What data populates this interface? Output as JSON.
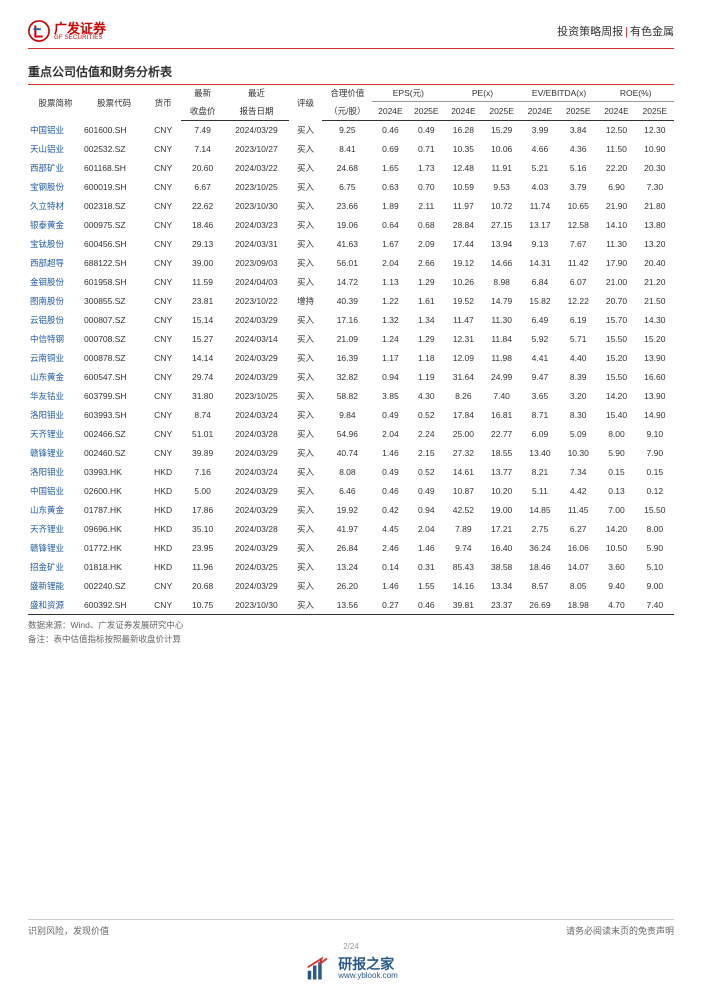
{
  "header": {
    "logo_cn": "广发证券",
    "logo_en": "GF SECURITIES",
    "right_left": "投资策略周报",
    "right_right": "有色金属"
  },
  "title": "重点公司估值和财务分析表",
  "table": {
    "group_headers": {
      "name": "股票简称",
      "code": "股票代码",
      "curr": "货币",
      "price_l1": "最新",
      "price_l2": "收盘价",
      "date_l1": "最近",
      "date_l2": "报告日期",
      "rating": "评级",
      "fair_l1": "合理价值",
      "fair_l2": "（元/股）",
      "eps": "EPS(元)",
      "pe": "PE(x)",
      "ev": "EV/EBITDA(x)",
      "roe": "ROE(%)"
    },
    "sub_headers": [
      "2024E",
      "2025E",
      "2024E",
      "2025E",
      "2024E",
      "2025E",
      "2024E",
      "2025E"
    ],
    "rows": [
      {
        "n": "中国铝业",
        "c": "601600.SH",
        "cur": "CNY",
        "p": "7.49",
        "d": "2024/03/29",
        "r": "买入",
        "fv": "9.25",
        "v": [
          "0.46",
          "0.49",
          "16.28",
          "15.29",
          "3.99",
          "3.84",
          "12.50",
          "12.30"
        ]
      },
      {
        "n": "天山铝业",
        "c": "002532.SZ",
        "cur": "CNY",
        "p": "7.14",
        "d": "2023/10/27",
        "r": "买入",
        "fv": "8.41",
        "v": [
          "0.69",
          "0.71",
          "10.35",
          "10.06",
          "4.66",
          "4.36",
          "11.50",
          "10.90"
        ]
      },
      {
        "n": "西部矿业",
        "c": "601168.SH",
        "cur": "CNY",
        "p": "20.60",
        "d": "2024/03/22",
        "r": "买入",
        "fv": "24.68",
        "v": [
          "1.65",
          "1.73",
          "12.48",
          "11.91",
          "5.21",
          "5.16",
          "22.20",
          "20.30"
        ]
      },
      {
        "n": "宝钢股份",
        "c": "600019.SH",
        "cur": "CNY",
        "p": "6.67",
        "d": "2023/10/25",
        "r": "买入",
        "fv": "6.75",
        "v": [
          "0.63",
          "0.70",
          "10.59",
          "9.53",
          "4.03",
          "3.79",
          "6.90",
          "7.30"
        ]
      },
      {
        "n": "久立特材",
        "c": "002318.SZ",
        "cur": "CNY",
        "p": "22.62",
        "d": "2023/10/30",
        "r": "买入",
        "fv": "23.66",
        "v": [
          "1.89",
          "2.11",
          "11.97",
          "10.72",
          "11.74",
          "10.65",
          "21.90",
          "21.80"
        ]
      },
      {
        "n": "银泰黄金",
        "c": "000975.SZ",
        "cur": "CNY",
        "p": "18.46",
        "d": "2024/03/23",
        "r": "买入",
        "fv": "19.06",
        "v": [
          "0.64",
          "0.68",
          "28.84",
          "27.15",
          "13.17",
          "12.58",
          "14.10",
          "13.80"
        ]
      },
      {
        "n": "宝钛股份",
        "c": "600456.SH",
        "cur": "CNY",
        "p": "29.13",
        "d": "2024/03/31",
        "r": "买入",
        "fv": "41.63",
        "v": [
          "1.67",
          "2.09",
          "17.44",
          "13.94",
          "9.13",
          "7.67",
          "11.30",
          "13.20"
        ]
      },
      {
        "n": "西部超导",
        "c": "688122.SH",
        "cur": "CNY",
        "p": "39.00",
        "d": "2023/09/03",
        "r": "买入",
        "fv": "56.01",
        "v": [
          "2.04",
          "2.66",
          "19.12",
          "14.66",
          "14.31",
          "11.42",
          "17.90",
          "20.40"
        ]
      },
      {
        "n": "金钼股份",
        "c": "601958.SH",
        "cur": "CNY",
        "p": "11.59",
        "d": "2024/04/03",
        "r": "买入",
        "fv": "14.72",
        "v": [
          "1.13",
          "1.29",
          "10.26",
          "8.98",
          "6.84",
          "6.07",
          "21.00",
          "21.20"
        ]
      },
      {
        "n": "图南股份",
        "c": "300855.SZ",
        "cur": "CNY",
        "p": "23.81",
        "d": "2023/10/22",
        "r": "增持",
        "fv": "40.39",
        "v": [
          "1.22",
          "1.61",
          "19.52",
          "14.79",
          "15.82",
          "12.22",
          "20.70",
          "21.50"
        ]
      },
      {
        "n": "云铝股份",
        "c": "000807.SZ",
        "cur": "CNY",
        "p": "15.14",
        "d": "2024/03/29",
        "r": "买入",
        "fv": "17.16",
        "v": [
          "1.32",
          "1.34",
          "11.47",
          "11.30",
          "6.49",
          "6.19",
          "15.70",
          "14.30"
        ]
      },
      {
        "n": "中信特钢",
        "c": "000708.SZ",
        "cur": "CNY",
        "p": "15.27",
        "d": "2024/03/14",
        "r": "买入",
        "fv": "21.09",
        "v": [
          "1.24",
          "1.29",
          "12.31",
          "11.84",
          "5.92",
          "5.71",
          "15.50",
          "15.20"
        ]
      },
      {
        "n": "云南铜业",
        "c": "000878.SZ",
        "cur": "CNY",
        "p": "14.14",
        "d": "2024/03/29",
        "r": "买入",
        "fv": "16.39",
        "v": [
          "1.17",
          "1.18",
          "12.09",
          "11.98",
          "4.41",
          "4.40",
          "15.20",
          "13.90"
        ]
      },
      {
        "n": "山东黄金",
        "c": "600547.SH",
        "cur": "CNY",
        "p": "29.74",
        "d": "2024/03/29",
        "r": "买入",
        "fv": "32.82",
        "v": [
          "0.94",
          "1.19",
          "31.64",
          "24.99",
          "9.47",
          "8.39",
          "15.50",
          "16.60"
        ]
      },
      {
        "n": "华友钴业",
        "c": "603799.SH",
        "cur": "CNY",
        "p": "31.80",
        "d": "2023/10/25",
        "r": "买入",
        "fv": "58.82",
        "v": [
          "3.85",
          "4.30",
          "8.26",
          "7.40",
          "3.65",
          "3.20",
          "14.20",
          "13.90"
        ]
      },
      {
        "n": "洛阳钼业",
        "c": "603993.SH",
        "cur": "CNY",
        "p": "8.74",
        "d": "2024/03/24",
        "r": "买入",
        "fv": "9.84",
        "v": [
          "0.49",
          "0.52",
          "17.84",
          "16.81",
          "8.71",
          "8.30",
          "15.40",
          "14.90"
        ]
      },
      {
        "n": "天齐锂业",
        "c": "002466.SZ",
        "cur": "CNY",
        "p": "51.01",
        "d": "2024/03/28",
        "r": "买入",
        "fv": "54.96",
        "v": [
          "2.04",
          "2.24",
          "25.00",
          "22.77",
          "6.09",
          "5.09",
          "8.00",
          "9.10"
        ]
      },
      {
        "n": "赣锋锂业",
        "c": "002460.SZ",
        "cur": "CNY",
        "p": "39.89",
        "d": "2024/03/29",
        "r": "买入",
        "fv": "40.74",
        "v": [
          "1.46",
          "2.15",
          "27.32",
          "18.55",
          "13.40",
          "10.30",
          "5.90",
          "7.90"
        ]
      },
      {
        "n": "洛阳钼业",
        "c": "03993.HK",
        "cur": "HKD",
        "p": "7.16",
        "d": "2024/03/24",
        "r": "买入",
        "fv": "8.08",
        "v": [
          "0.49",
          "0.52",
          "14.61",
          "13.77",
          "8.21",
          "7.34",
          "0.15",
          "0.15"
        ]
      },
      {
        "n": "中国铝业",
        "c": "02600.HK",
        "cur": "HKD",
        "p": "5.00",
        "d": "2024/03/29",
        "r": "买入",
        "fv": "6.46",
        "v": [
          "0.46",
          "0.49",
          "10.87",
          "10.20",
          "5.11",
          "4.42",
          "0.13",
          "0.12"
        ]
      },
      {
        "n": "山东黄金",
        "c": "01787.HK",
        "cur": "HKD",
        "p": "17.86",
        "d": "2024/03/29",
        "r": "买入",
        "fv": "19.92",
        "v": [
          "0.42",
          "0.94",
          "42.52",
          "19.00",
          "14.85",
          "11.45",
          "7.00",
          "15.50"
        ]
      },
      {
        "n": "天齐锂业",
        "c": "09696.HK",
        "cur": "HKD",
        "p": "35.10",
        "d": "2024/03/28",
        "r": "买入",
        "fv": "41.97",
        "v": [
          "4.45",
          "2.04",
          "7.89",
          "17.21",
          "2.75",
          "6.27",
          "14.20",
          "8.00"
        ]
      },
      {
        "n": "赣锋锂业",
        "c": "01772.HK",
        "cur": "HKD",
        "p": "23.95",
        "d": "2024/03/29",
        "r": "买入",
        "fv": "26.84",
        "v": [
          "2.46",
          "1.46",
          "9.74",
          "16.40",
          "36.24",
          "16.06",
          "10.50",
          "5.90"
        ]
      },
      {
        "n": "招金矿业",
        "c": "01818.HK",
        "cur": "HKD",
        "p": "11.96",
        "d": "2024/03/25",
        "r": "买入",
        "fv": "13.24",
        "v": [
          "0.14",
          "0.31",
          "85.43",
          "38.58",
          "18.46",
          "14.07",
          "3.60",
          "5.10"
        ]
      },
      {
        "n": "盛新锂能",
        "c": "002240.SZ",
        "cur": "CNY",
        "p": "20.68",
        "d": "2024/03/29",
        "r": "买入",
        "fv": "26.20",
        "v": [
          "1.46",
          "1.55",
          "14.16",
          "13.34",
          "8.57",
          "8.05",
          "9.40",
          "9.00"
        ]
      },
      {
        "n": "盛和资源",
        "c": "600392.SH",
        "cur": "CNY",
        "p": "10.75",
        "d": "2023/10/30",
        "r": "买入",
        "fv": "13.56",
        "v": [
          "0.27",
          "0.46",
          "39.81",
          "23.37",
          "26.69",
          "18.98",
          "4.70",
          "7.40"
        ]
      }
    ]
  },
  "notes": {
    "line1": "数据来源：Wind、广发证券发展研究中心",
    "line2": "备注：表中估值指标按照最新收盘价计算"
  },
  "footer": {
    "left": "识别风险，发现价值",
    "right": "请务必阅读末页的免责声明",
    "pagenum": "2/24"
  },
  "watermark": {
    "cn": "研报之家",
    "en": "www.yblook.com"
  }
}
